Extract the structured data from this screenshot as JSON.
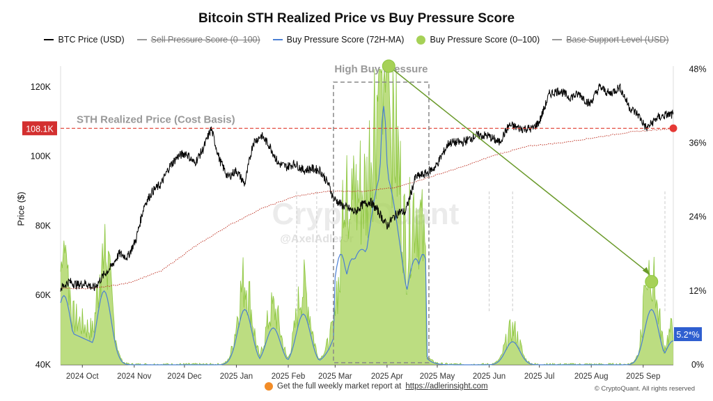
{
  "chart_data": {
    "type": "line",
    "title": "Bitcoin STH Realized Price vs Buy Pressure Score",
    "legend": [
      {
        "label": "BTC Price (USD)",
        "color": "#000000",
        "marker": "line",
        "hidden": false
      },
      {
        "label": "Sell Pressure Score (0–100)",
        "color": "#999999",
        "marker": "line",
        "hidden": true
      },
      {
        "label": "Buy Pressure Score (72H-MA)",
        "color": "#4a7fd4",
        "marker": "line",
        "hidden": false
      },
      {
        "label": "Buy Pressure Score (0–100)",
        "color": "#a6d157",
        "marker": "dot",
        "hidden": false
      },
      {
        "label": "Base Support Level (USD)",
        "color": "#999999",
        "marker": "line",
        "hidden": true
      }
    ],
    "y_left": {
      "label": "Price ($)",
      "min": 40000,
      "max": 126000,
      "ticks": [
        "40K",
        "60K",
        "80K",
        "100K",
        "120K"
      ],
      "tick_values": [
        40000,
        60000,
        80000,
        100000,
        120000
      ]
    },
    "y_right": {
      "min": 0,
      "max": 0.485,
      "ticks": [
        "0%",
        "12%",
        "24%",
        "36%",
        "48%"
      ],
      "tick_values": [
        0,
        0.12,
        0.24,
        0.36,
        0.48
      ]
    },
    "x_ticks": [
      "2024 Oct",
      "2024 Nov",
      "2024 Dec",
      "2025 Jan",
      "2025 Feb",
      "2025 Mar",
      "2025 Apr",
      "2025 May",
      "2025 Jun",
      "2025 Jul",
      "2025 Aug",
      "2025 Sep"
    ],
    "x_tick_days": [
      13,
      44,
      74,
      105,
      136,
      164,
      195,
      225,
      256,
      286,
      317,
      348
    ],
    "day_range": [
      0,
      366
    ],
    "btc_price": {
      "days": [
        0,
        5,
        10,
        15,
        20,
        26,
        30,
        35,
        40,
        45,
        50,
        55,
        60,
        65,
        70,
        75,
        80,
        85,
        90,
        95,
        100,
        105,
        110,
        115,
        120,
        125,
        130,
        135,
        140,
        145,
        150,
        155,
        160,
        163,
        168,
        172,
        176,
        180,
        185,
        190,
        195,
        198,
        202,
        206,
        212,
        218,
        224,
        232,
        240,
        248,
        255,
        262,
        268,
        275,
        282,
        286,
        292,
        298,
        304,
        310,
        316,
        322,
        328,
        334,
        340,
        345,
        350,
        356,
        362,
        366
      ],
      "values": [
        62000,
        64000,
        63000,
        63500,
        62000,
        66000,
        68000,
        72000,
        71000,
        76000,
        86000,
        90000,
        92000,
        97000,
        100000,
        101000,
        98000,
        102000,
        108000,
        99000,
        94000,
        96000,
        92000,
        104000,
        106000,
        103000,
        98000,
        97000,
        98000,
        96000,
        96500,
        96000,
        92000,
        88000,
        86000,
        85000,
        84000,
        86000,
        87000,
        84000,
        80000,
        82000,
        84000,
        84000,
        94000,
        95000,
        97000,
        104000,
        104000,
        106000,
        106000,
        104000,
        109000,
        108000,
        108000,
        110000,
        118000,
        119000,
        117000,
        118000,
        115000,
        120000,
        118000,
        120000,
        114000,
        112000,
        108000,
        111000,
        112000,
        112000
      ]
    },
    "sth_realized_price": {
      "days": [
        0,
        20,
        40,
        60,
        80,
        100,
        120,
        140,
        160,
        180,
        200,
        220,
        240,
        260,
        280,
        300,
        320,
        340,
        366
      ],
      "values": [
        62000,
        62000,
        63500,
        67000,
        74000,
        80000,
        85000,
        88500,
        90000,
        90000,
        91000,
        94000,
        97000,
        100500,
        103000,
        104000,
        105500,
        107000,
        108100
      ]
    },
    "buy_pressure_ma_peaks": [
      {
        "day": 2,
        "value": 0.15
      },
      {
        "day": 26,
        "value": 0.16
      },
      {
        "day": 110,
        "value": 0.12
      },
      {
        "day": 127,
        "value": 0.08
      },
      {
        "day": 145,
        "value": 0.11
      },
      {
        "day": 180,
        "value": 0.25
      },
      {
        "day": 193,
        "value": 0.42
      },
      {
        "day": 270,
        "value": 0.05
      },
      {
        "day": 353,
        "value": 0.12
      },
      {
        "day": 366,
        "value": 0.052
      }
    ],
    "buy_pressure_raw_regimes": [
      {
        "from_day": 0,
        "to_day": 30,
        "level": "elevated"
      },
      {
        "from_day": 164,
        "to_day": 218,
        "level": "high"
      },
      {
        "from_day": 340,
        "to_day": 366,
        "level": "rising"
      }
    ],
    "reference_line": {
      "label": "STH Realized Price (Cost Basis)",
      "value": 108100,
      "value_label": "108.1K",
      "color": "#e03b2f"
    },
    "highlight_box": {
      "label": "High Buy Pressure",
      "from_day": 163,
      "to_day": 220
    },
    "markers": [
      {
        "day": 196,
        "value": 0.485,
        "note": "peak buy pressure"
      },
      {
        "day": 353,
        "value": 0.135,
        "note": "current buy pressure"
      }
    ],
    "current_value_label": "5.2*%",
    "watermark": "CryptoQuant",
    "watermark_handle": "@AxelAdlerJr"
  },
  "footer": {
    "text": "Get the full weekly market report at",
    "link": "https://adlerinsight.com"
  },
  "copyright": "© CryptoQuant. All rights reserved"
}
